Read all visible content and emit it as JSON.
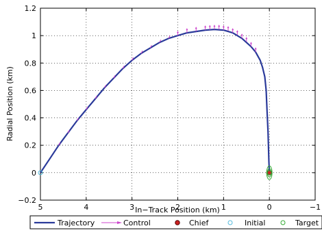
{
  "chart_data": {
    "type": "line",
    "title": "",
    "xlabel": "In−Track Position (km)",
    "ylabel": "Radial Position (km)",
    "xlim": [
      5,
      -1
    ],
    "ylim": [
      -0.2,
      1.2
    ],
    "x_reversed": true,
    "grid": true,
    "legend_placement": "bottom",
    "x_ticks": [
      5,
      4,
      3,
      2,
      1,
      0,
      -1
    ],
    "x_tick_labels": [
      "5",
      "4",
      "3",
      "2",
      "1",
      "0",
      "−1"
    ],
    "y_ticks": [
      -0.2,
      0,
      0.2,
      0.4,
      0.6,
      0.8,
      1.0,
      1.2
    ],
    "y_tick_labels": [
      "−0.2",
      "0",
      "0.2",
      "0.4",
      "0.6",
      "0.8",
      "1",
      "1.2"
    ],
    "series": [
      {
        "name": "Trajectory",
        "color": "#2a3a9a",
        "x": [
          5.0,
          4.8,
          4.6,
          4.4,
          4.2,
          4.0,
          3.8,
          3.6,
          3.4,
          3.2,
          3.0,
          2.8,
          2.6,
          2.4,
          2.2,
          2.0,
          1.8,
          1.6,
          1.4,
          1.2,
          1.0,
          0.8,
          0.6,
          0.4,
          0.3,
          0.2,
          0.15,
          0.1,
          0.07,
          0.05,
          0.03,
          0.02,
          0.01,
          0.0
        ],
        "y": [
          0.0,
          0.1,
          0.2,
          0.29,
          0.38,
          0.46,
          0.54,
          0.62,
          0.69,
          0.76,
          0.82,
          0.87,
          0.91,
          0.95,
          0.98,
          1.0,
          1.02,
          1.03,
          1.04,
          1.045,
          1.04,
          1.02,
          0.98,
          0.92,
          0.88,
          0.82,
          0.77,
          0.7,
          0.6,
          0.45,
          0.3,
          0.2,
          0.08,
          0.0
        ]
      },
      {
        "name": "Control",
        "color": "#cc44cc",
        "x": [
          4.6,
          4.4,
          4.2,
          4.0,
          3.8,
          3.6,
          3.4,
          3.2,
          3.0,
          2.8,
          2.6,
          2.4,
          2.2,
          2.0,
          1.8,
          1.6,
          1.4,
          1.3,
          1.2,
          1.1,
          1.0,
          0.9,
          0.8,
          0.7,
          0.6,
          0.5,
          0.4,
          0.3
        ],
        "y": [
          0.2,
          0.29,
          0.38,
          0.46,
          0.54,
          0.62,
          0.69,
          0.76,
          0.82,
          0.87,
          0.91,
          0.95,
          0.98,
          1.0,
          1.02,
          1.03,
          1.04,
          1.043,
          1.045,
          1.045,
          1.04,
          1.035,
          1.02,
          1.005,
          0.98,
          0.955,
          0.92,
          0.88
        ]
      }
    ],
    "markers": [
      {
        "name": "Chief",
        "x": 0,
        "y": 0,
        "color": "#cc2222",
        "filled": true
      },
      {
        "name": "Initial",
        "x": 5,
        "y": 0,
        "color": "#55bbdd",
        "filled": false
      },
      {
        "name": "Target",
        "x": 0,
        "y": 0,
        "color": "#33aa33",
        "filled": false
      }
    ]
  }
}
